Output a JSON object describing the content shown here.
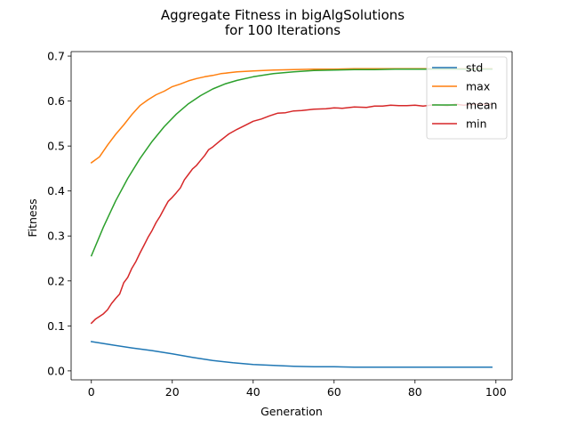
{
  "chart_data": {
    "type": "line",
    "title": [
      "Aggregate Fitness in bigAlgSolutions",
      "for 100 Iterations"
    ],
    "xlabel": "Generation",
    "ylabel": "Fitness",
    "xlim": [
      -5,
      104
    ],
    "ylim": [
      -0.02,
      0.71
    ],
    "xticks": [
      0,
      20,
      40,
      60,
      80,
      100
    ],
    "yticks": [
      0.0,
      0.1,
      0.2,
      0.3,
      0.4,
      0.5,
      0.6,
      0.7
    ],
    "legend_position": "top-right",
    "grid": false,
    "series": [
      {
        "name": "std",
        "color": "#1f77b4",
        "x": [
          0,
          5,
          10,
          15,
          20,
          25,
          30,
          35,
          40,
          45,
          50,
          55,
          60,
          65,
          70,
          75,
          80,
          85,
          90,
          95,
          99
        ],
        "values": [
          0.065,
          0.058,
          0.051,
          0.045,
          0.038,
          0.03,
          0.023,
          0.018,
          0.014,
          0.012,
          0.01,
          0.009,
          0.009,
          0.008,
          0.008,
          0.008,
          0.008,
          0.008,
          0.008,
          0.008,
          0.008
        ]
      },
      {
        "name": "max",
        "color": "#ff7f0e",
        "x": [
          0,
          2,
          4,
          6,
          8,
          10,
          12,
          14,
          16,
          18,
          20,
          22,
          24,
          26,
          28,
          30,
          32,
          34,
          36,
          38,
          40,
          45,
          50,
          55,
          60,
          65,
          70,
          75,
          80,
          85,
          90,
          95,
          99
        ],
        "values": [
          0.463,
          0.476,
          0.502,
          0.526,
          0.547,
          0.57,
          0.59,
          0.603,
          0.614,
          0.622,
          0.632,
          0.638,
          0.645,
          0.65,
          0.654,
          0.657,
          0.661,
          0.663,
          0.665,
          0.666,
          0.667,
          0.669,
          0.67,
          0.671,
          0.671,
          0.672,
          0.672,
          0.672,
          0.672,
          0.672,
          0.672,
          0.672,
          0.672
        ]
      },
      {
        "name": "mean",
        "color": "#2ca02c",
        "x": [
          0,
          3,
          6,
          9,
          12,
          15,
          18,
          21,
          24,
          27,
          30,
          33,
          36,
          40,
          45,
          50,
          55,
          60,
          65,
          70,
          75,
          80,
          85,
          90,
          95,
          99
        ],
        "values": [
          0.256,
          0.32,
          0.378,
          0.428,
          0.472,
          0.51,
          0.543,
          0.571,
          0.594,
          0.612,
          0.627,
          0.638,
          0.646,
          0.654,
          0.661,
          0.665,
          0.668,
          0.669,
          0.67,
          0.67,
          0.671,
          0.671,
          0.671,
          0.671,
          0.671,
          0.671
        ]
      },
      {
        "name": "min",
        "color": "#d62728",
        "x": [
          0,
          1,
          2,
          3,
          4,
          5,
          6,
          7,
          8,
          9,
          10,
          11,
          12,
          13,
          14,
          15,
          16,
          17,
          18,
          19,
          20,
          21,
          22,
          23,
          24,
          25,
          26,
          27,
          28,
          29,
          30,
          32,
          34,
          36,
          38,
          40,
          42,
          44,
          46,
          48,
          50,
          52,
          55,
          58,
          60,
          62,
          65,
          68,
          70,
          72,
          74,
          76,
          78,
          80,
          82,
          85,
          88,
          90,
          92,
          95,
          99
        ],
        "values": [
          0.106,
          0.115,
          0.121,
          0.127,
          0.136,
          0.15,
          0.161,
          0.171,
          0.196,
          0.208,
          0.228,
          0.243,
          0.262,
          0.279,
          0.297,
          0.312,
          0.33,
          0.344,
          0.361,
          0.377,
          0.386,
          0.396,
          0.407,
          0.425,
          0.437,
          0.449,
          0.457,
          0.468,
          0.479,
          0.492,
          0.498,
          0.513,
          0.527,
          0.537,
          0.546,
          0.555,
          0.56,
          0.567,
          0.573,
          0.574,
          0.578,
          0.579,
          0.582,
          0.583,
          0.585,
          0.584,
          0.587,
          0.586,
          0.589,
          0.589,
          0.591,
          0.59,
          0.59,
          0.591,
          0.589,
          0.592,
          0.59,
          0.593,
          0.591,
          0.593,
          0.593
        ]
      }
    ]
  }
}
